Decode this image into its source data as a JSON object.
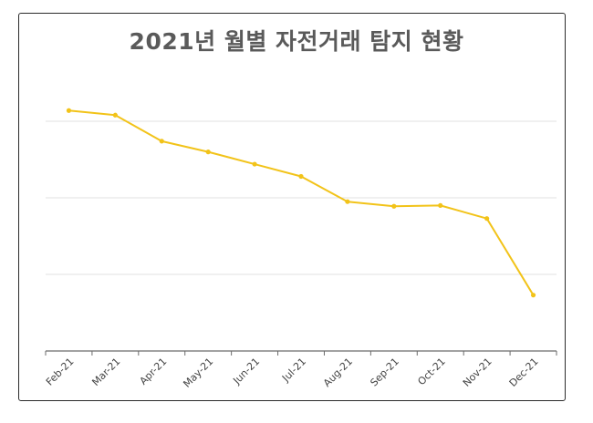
{
  "chart_data": {
    "type": "line",
    "title": "2021년 월별 자전거래 탐지 현황",
    "categories": [
      "Feb-21",
      "Mar-21",
      "Apr-21",
      "May-21",
      "Jun-21",
      "Jul-21",
      "Aug-21",
      "Sep-21",
      "Oct-21",
      "Nov-21",
      "Dec-21"
    ],
    "series": [
      {
        "values": [
          3.14,
          3.08,
          2.74,
          2.6,
          2.44,
          2.28,
          1.95,
          1.89,
          1.9,
          1.73,
          0.73
        ]
      }
    ],
    "ylim": [
      -0.5,
      3.5
    ],
    "y_ticks_labeled": false,
    "grid": "horizontal",
    "legend": "none",
    "line_color": "#f2c319",
    "grid_color": "#e0e0e0",
    "axis_color": "#6b6b6b",
    "label_color": "#444444"
  }
}
